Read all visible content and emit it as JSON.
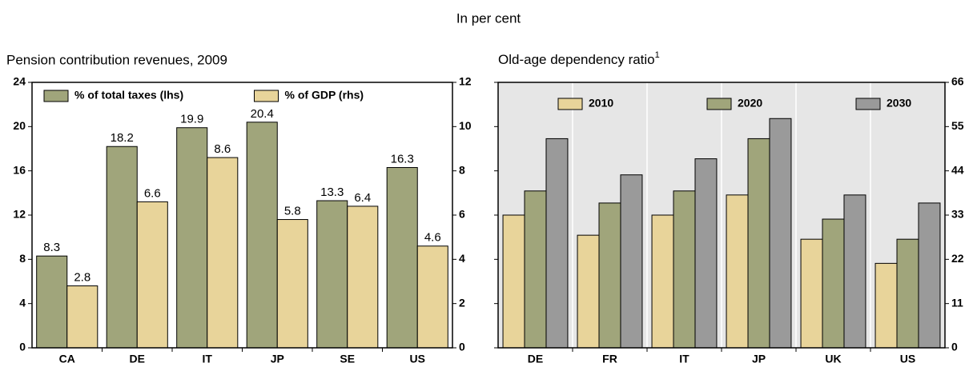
{
  "header": {
    "title": "In per cent"
  },
  "chart_data": [
    {
      "type": "bar",
      "title": "Pension contribution revenues, 2009",
      "categories": [
        "CA",
        "DE",
        "IT",
        "JP",
        "SE",
        "US"
      ],
      "series": [
        {
          "name": "% of total taxes (lhs)",
          "color": "#a0a57b",
          "values": [
            8.3,
            18.2,
            19.9,
            20.4,
            13.3,
            16.3
          ]
        },
        {
          "name": "% of GDP (rhs)",
          "color": "#e8d49a",
          "axis": "y2",
          "values": [
            2.8,
            6.6,
            8.6,
            5.8,
            6.4,
            4.6
          ]
        }
      ],
      "ylim": [
        0,
        24
      ],
      "yticks": [
        0,
        4,
        8,
        12,
        16,
        20,
        24
      ],
      "y2lim": [
        0,
        12
      ],
      "y2ticks": [
        0,
        2,
        4,
        6,
        8,
        10,
        12
      ],
      "data_labels": true,
      "grid": false,
      "background": "#ffffff",
      "legend": "top"
    },
    {
      "type": "bar",
      "title": "Old-age dependency ratio",
      "title_note": "1",
      "categories": [
        "DE",
        "FR",
        "IT",
        "JP",
        "UK",
        "US"
      ],
      "series": [
        {
          "name": "2010",
          "color": "#e8d49a",
          "axis": "y2",
          "values": [
            33,
            28,
            33,
            38,
            27,
            21
          ]
        },
        {
          "name": "2020",
          "color": "#a0a57b",
          "axis": "y2",
          "values": [
            39,
            36,
            39,
            52,
            32,
            27
          ]
        },
        {
          "name": "2030",
          "color": "#9a9a9a",
          "axis": "y2",
          "values": [
            52,
            43,
            47,
            57,
            38,
            36
          ]
        }
      ],
      "y2lim": [
        0,
        66
      ],
      "y2ticks": [
        0,
        11,
        22,
        33,
        44,
        55,
        66
      ],
      "data_labels": false,
      "grid": true,
      "background": "#e6e6e6",
      "legend": "top"
    }
  ]
}
